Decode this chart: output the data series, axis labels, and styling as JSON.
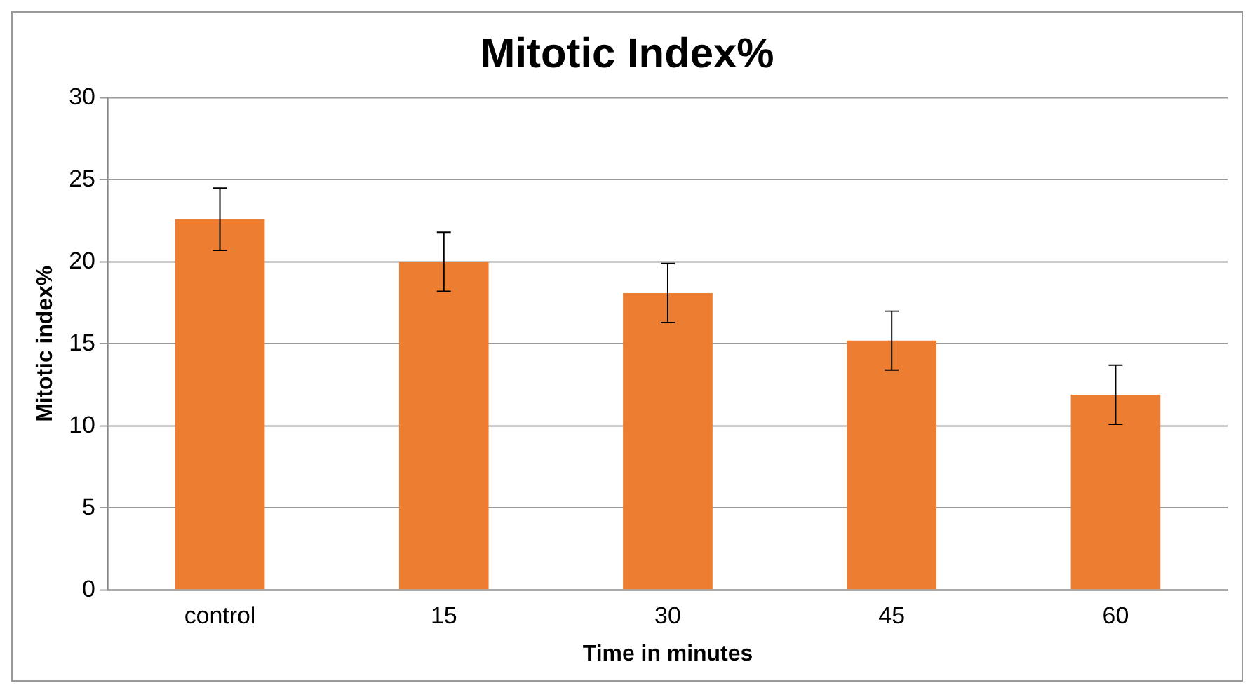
{
  "chart_data": {
    "type": "bar",
    "title": "Mitotic Index%",
    "xlabel": "Time in minutes",
    "ylabel": "Mitotic index%",
    "categories": [
      "control",
      "15",
      "30",
      "45",
      "60"
    ],
    "values": [
      22.6,
      20.0,
      18.1,
      15.2,
      11.9
    ],
    "errors": [
      1.9,
      1.8,
      1.8,
      1.8,
      1.8
    ],
    "color": "#ed7d31",
    "ylim": [
      0,
      30
    ],
    "yticks": [
      0,
      5,
      10,
      15,
      20,
      25,
      30
    ],
    "grid": "y",
    "legend": false
  }
}
